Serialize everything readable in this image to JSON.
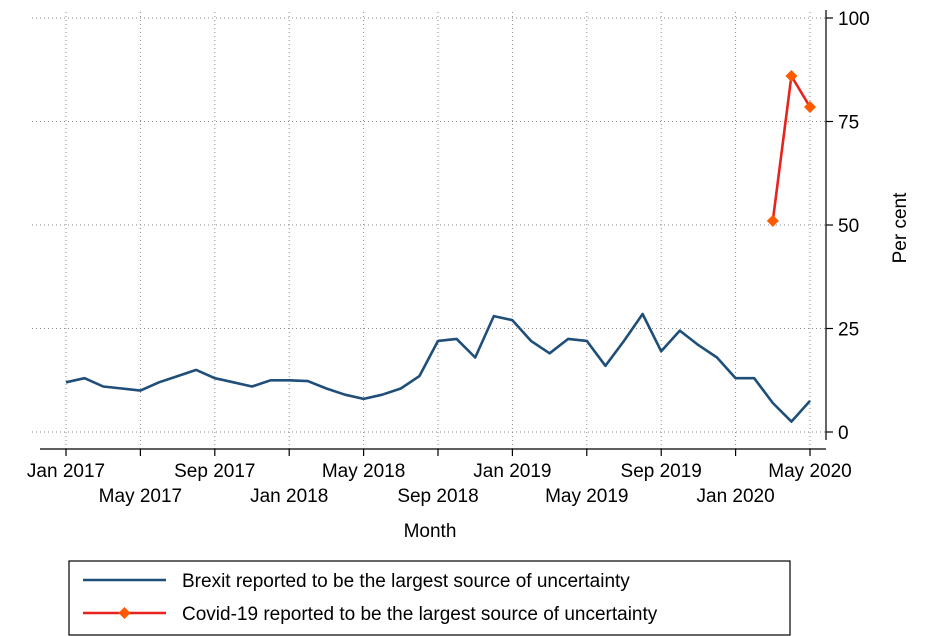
{
  "chart_data": {
    "type": "line",
    "title": "",
    "xlabel": "Month",
    "ylabel": "Per cent",
    "ylim": [
      0,
      100
    ],
    "yticks": [
      0,
      25,
      50,
      75,
      100
    ],
    "y_axis_side": "right",
    "grid": true,
    "legend_position": "bottom",
    "x_start": "Jan 2017",
    "xticks": [
      {
        "label": "Jan 2017",
        "index": 0,
        "row": 1
      },
      {
        "label": "May 2017",
        "index": 4,
        "row": 2
      },
      {
        "label": "Sep 2017",
        "index": 8,
        "row": 1
      },
      {
        "label": "Jan 2018",
        "index": 12,
        "row": 2
      },
      {
        "label": "May 2018",
        "index": 16,
        "row": 1
      },
      {
        "label": "Sep 2018",
        "index": 20,
        "row": 2
      },
      {
        "label": "Jan 2019",
        "index": 24,
        "row": 1
      },
      {
        "label": "May 2019",
        "index": 28,
        "row": 2
      },
      {
        "label": "Sep 2019",
        "index": 32,
        "row": 1
      },
      {
        "label": "Jan 2020",
        "index": 36,
        "row": 2
      },
      {
        "label": "May 2020",
        "index": 40,
        "row": 1
      }
    ],
    "series": [
      {
        "name": "Brexit reported to be the largest source of uncertainty",
        "color": "#1f4e79",
        "marker": "none",
        "x": [
          0,
          1,
          2,
          3,
          4,
          5,
          6,
          7,
          8,
          9,
          10,
          11,
          12,
          13,
          14,
          15,
          16,
          17,
          18,
          19,
          20,
          21,
          22,
          23,
          24,
          25,
          26,
          27,
          28,
          29,
          30,
          31,
          32,
          33,
          34,
          35,
          36,
          37,
          38,
          39,
          40
        ],
        "values": [
          12,
          13,
          11,
          10.5,
          10,
          12,
          13.5,
          15,
          13,
          12,
          11,
          12.5,
          12.5,
          12.3,
          10.5,
          9,
          8,
          9,
          10.5,
          13.5,
          22,
          22.5,
          18,
          28,
          27,
          22,
          19,
          22.5,
          22,
          16,
          22,
          28.5,
          19.5,
          24.5,
          21,
          18,
          13,
          13,
          7,
          2.5,
          7.5
        ]
      },
      {
        "name": "Covid-19 reported to be the largest source of uncertainty",
        "color": "#e8231d",
        "marker": "diamond",
        "marker_color": "#ff5a00",
        "x": [
          38,
          39,
          40
        ],
        "values": [
          51,
          86,
          78.5
        ]
      }
    ]
  }
}
